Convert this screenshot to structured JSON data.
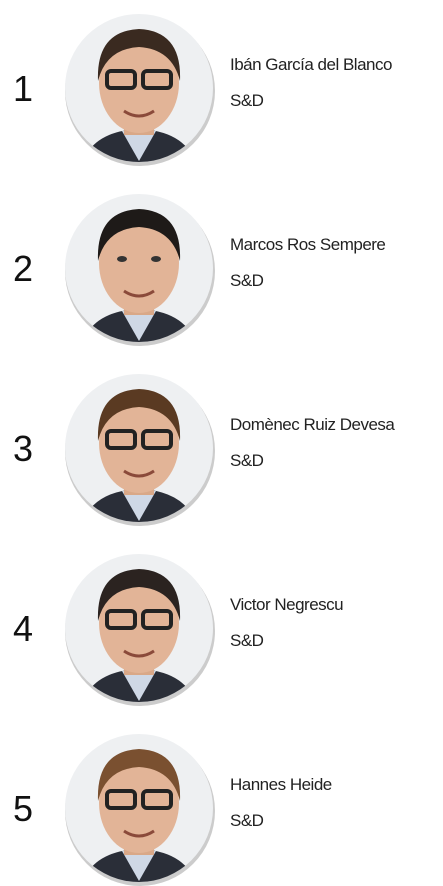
{
  "items": [
    {
      "rank": "1",
      "name": "Ibán García del Blanco",
      "group": "S&D"
    },
    {
      "rank": "2",
      "name": "Marcos Ros Sempere",
      "group": "S&D"
    },
    {
      "rank": "3",
      "name": "Domènec Ruiz Devesa",
      "group": "S&D"
    },
    {
      "rank": "4",
      "name": "Victor Negrescu",
      "group": "S&D"
    },
    {
      "rank": "5",
      "name": "Hannes Heide",
      "group": "S&D"
    }
  ]
}
